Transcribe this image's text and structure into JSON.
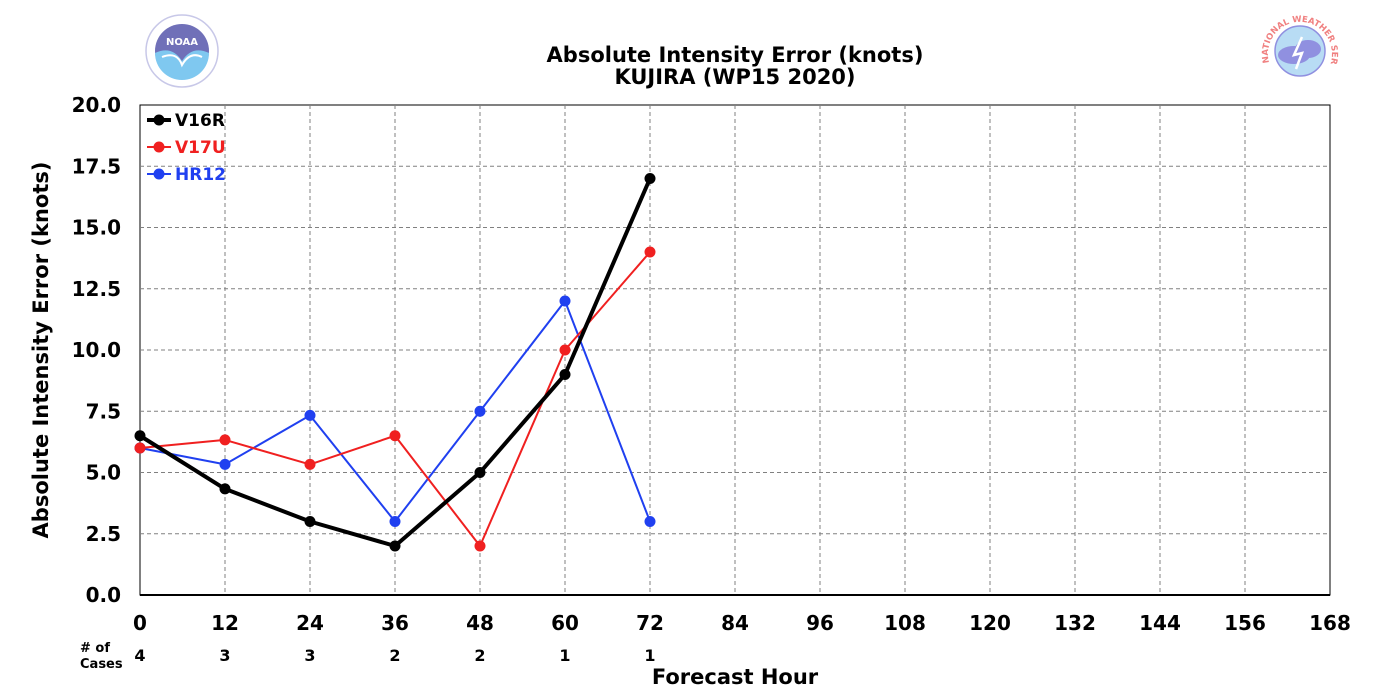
{
  "chart_data": {
    "type": "line",
    "title": "Absolute Intensity Error (knots)",
    "subtitle": "KUJIRA (WP15 2020)",
    "xlabel": "Forecast Hour",
    "ylabel": "Absolute Intensity Error (knots)",
    "xlim": [
      0,
      168
    ],
    "ylim": [
      0,
      20
    ],
    "xticks": [
      0,
      12,
      24,
      36,
      48,
      60,
      72,
      84,
      96,
      108,
      120,
      132,
      144,
      156,
      168
    ],
    "yticks": [
      0,
      2.5,
      5,
      7.5,
      10,
      12.5,
      15,
      17.5,
      20
    ],
    "ytick_labels": [
      "0.0",
      "2.5",
      "5.0",
      "7.5",
      "10.0",
      "12.5",
      "15.0",
      "17.5",
      "20.0"
    ],
    "grid": true,
    "legend_position": "top-left",
    "x": [
      0,
      12,
      24,
      36,
      48,
      60,
      72
    ],
    "series": [
      {
        "name": "V16R",
        "color": "#000000",
        "values": [
          6.5,
          4.33,
          3.0,
          2.0,
          5.0,
          9.0,
          17.0
        ]
      },
      {
        "name": "V17U",
        "color": "#f02020",
        "values": [
          6.0,
          6.33,
          5.33,
          6.5,
          2.0,
          10.0,
          14.0
        ]
      },
      {
        "name": "HR12",
        "color": "#2040f0",
        "values": [
          6.0,
          5.33,
          7.33,
          3.0,
          7.5,
          12.0,
          3.0
        ]
      }
    ],
    "cases_label": "# of Cases",
    "cases": [
      4,
      3,
      3,
      2,
      2,
      1,
      1
    ]
  },
  "logos": {
    "left": {
      "icon": "noaa-logo",
      "text": "NOAA",
      "colors": [
        "#7fc8f0",
        "#7070b8"
      ]
    },
    "right": {
      "icon": "nws-logo",
      "text": "NATIONAL WEATHER SERVICE",
      "colors": [
        "#f08080",
        "#9090e0"
      ]
    }
  }
}
